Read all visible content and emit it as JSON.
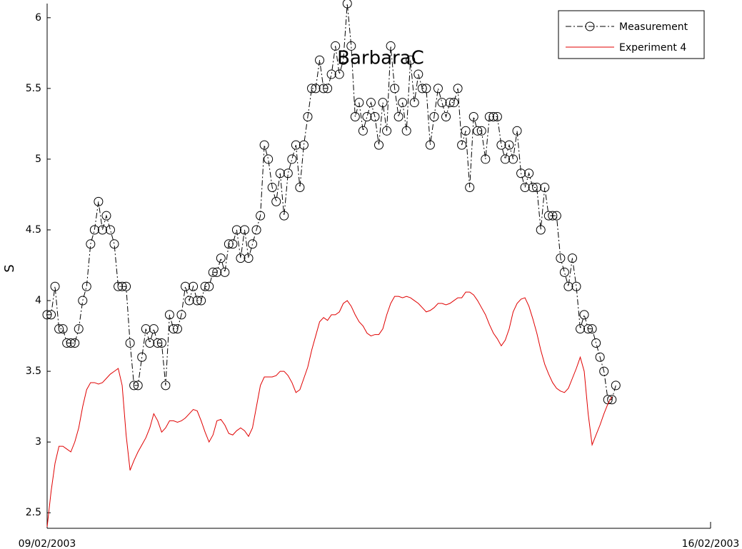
{
  "chart_data": {
    "type": "line",
    "title": "BarbaraC",
    "ylabel": "S",
    "xlim": [
      0,
      168
    ],
    "xticks": [
      {
        "value": 0,
        "label": "09/02/2003"
      },
      {
        "value": 168,
        "label": "16/02/2003"
      }
    ],
    "ylim": [
      2.39,
      6.1
    ],
    "yticks": [
      2.5,
      3,
      3.5,
      4,
      4.5,
      5,
      5.5,
      6
    ],
    "legend": "upper right",
    "x": [
      0,
      1,
      2,
      3,
      4,
      5,
      6,
      7,
      8,
      9,
      10,
      11,
      12,
      13,
      14,
      15,
      16,
      17,
      18,
      19,
      20,
      21,
      22,
      23,
      24,
      25,
      26,
      27,
      28,
      29,
      30,
      31,
      32,
      33,
      34,
      35,
      36,
      37,
      38,
      39,
      40,
      41,
      42,
      43,
      44,
      45,
      46,
      47,
      48,
      49,
      50,
      51,
      52,
      53,
      54,
      55,
      56,
      57,
      58,
      59,
      60,
      61,
      62,
      63,
      64,
      65,
      66,
      67,
      68,
      69,
      70,
      71,
      72,
      73,
      74,
      75,
      76,
      77,
      78,
      79,
      80,
      81,
      82,
      83,
      84,
      85,
      86,
      87,
      88,
      89,
      90,
      91,
      92,
      93,
      94,
      95,
      96,
      97,
      98,
      99,
      100,
      101,
      102,
      103,
      104,
      105,
      106,
      107,
      108,
      109,
      110,
      111,
      112,
      113,
      114,
      115,
      116,
      117,
      118,
      119,
      120,
      121,
      122,
      123,
      124,
      125,
      126,
      127,
      128,
      129,
      130,
      131,
      132,
      133,
      134,
      135,
      136,
      137,
      138,
      139,
      140,
      141,
      142,
      143,
      144
    ],
    "series": [
      {
        "name": "Measurement",
        "color": "#000000",
        "marker": "circle",
        "linestyle": "dashdot",
        "values": [
          3.9,
          3.9,
          4.1,
          3.8,
          3.8,
          3.7,
          3.7,
          3.7,
          3.8,
          4.0,
          4.1,
          4.4,
          4.5,
          4.7,
          4.5,
          4.6,
          4.5,
          4.4,
          4.1,
          4.1,
          4.1,
          3.7,
          3.4,
          3.4,
          3.6,
          3.8,
          3.7,
          3.8,
          3.7,
          3.7,
          3.4,
          3.9,
          3.8,
          3.8,
          3.9,
          4.1,
          4.0,
          4.1,
          4.0,
          4.0,
          4.1,
          4.1,
          4.2,
          4.2,
          4.3,
          4.2,
          4.4,
          4.4,
          4.5,
          4.3,
          4.5,
          4.3,
          4.4,
          4.5,
          4.6,
          5.1,
          5.0,
          4.8,
          4.7,
          4.9,
          4.6,
          4.9,
          5.0,
          5.1,
          4.8,
          5.1,
          5.3,
          5.5,
          5.5,
          5.7,
          5.5,
          5.5,
          5.6,
          5.8,
          5.6,
          5.7,
          6.1,
          5.8,
          5.3,
          5.4,
          5.2,
          5.3,
          5.4,
          5.3,
          5.1,
          5.4,
          5.2,
          5.8,
          5.5,
          5.3,
          5.4,
          5.2,
          5.7,
          5.4,
          5.6,
          5.5,
          5.5,
          5.1,
          5.3,
          5.5,
          5.4,
          5.3,
          5.4,
          5.4,
          5.5,
          5.1,
          5.2,
          4.8,
          5.3,
          5.2,
          5.2,
          5.0,
          5.3,
          5.3,
          5.3,
          5.1,
          5.0,
          5.1,
          5.0,
          5.2,
          4.9,
          4.8,
          4.9,
          4.8,
          4.8,
          4.5,
          4.8,
          4.6,
          4.6,
          4.6,
          4.3,
          4.2,
          4.1,
          4.3,
          4.1,
          3.8,
          3.9,
          3.8,
          3.8,
          3.7,
          3.6,
          3.5,
          3.3,
          3.3,
          3.4
        ]
      },
      {
        "name": "Experiment 4",
        "color": "#e00000",
        "linestyle": "solid",
        "values": [
          2.4,
          2.65,
          2.85,
          2.97,
          2.97,
          2.95,
          2.93,
          3.0,
          3.1,
          3.25,
          3.37,
          3.42,
          3.42,
          3.41,
          3.42,
          3.45,
          3.48,
          3.5,
          3.52,
          3.4,
          3.05,
          2.8,
          2.87,
          2.93,
          2.98,
          3.03,
          3.1,
          3.2,
          3.15,
          3.07,
          3.1,
          3.15,
          3.15,
          3.14,
          3.15,
          3.17,
          3.2,
          3.23,
          3.22,
          3.15,
          3.07,
          3.0,
          3.05,
          3.15,
          3.16,
          3.12,
          3.06,
          3.05,
          3.08,
          3.1,
          3.08,
          3.04,
          3.1,
          3.25,
          3.4,
          3.46,
          3.46,
          3.46,
          3.47,
          3.5,
          3.5,
          3.47,
          3.42,
          3.35,
          3.37,
          3.45,
          3.53,
          3.65,
          3.75,
          3.85,
          3.88,
          3.86,
          3.9,
          3.9,
          3.92,
          3.98,
          4.0,
          3.96,
          3.9,
          3.85,
          3.82,
          3.77,
          3.75,
          3.76,
          3.76,
          3.8,
          3.9,
          3.98,
          4.03,
          4.03,
          4.02,
          4.03,
          4.02,
          4.0,
          3.98,
          3.95,
          3.92,
          3.93,
          3.95,
          3.98,
          3.98,
          3.97,
          3.98,
          4.0,
          4.02,
          4.02,
          4.06,
          4.06,
          4.04,
          4.0,
          3.95,
          3.9,
          3.83,
          3.77,
          3.73,
          3.68,
          3.72,
          3.8,
          3.92,
          3.98,
          4.01,
          4.02,
          3.96,
          3.87,
          3.77,
          3.65,
          3.55,
          3.48,
          3.42,
          3.38,
          3.36,
          3.35,
          3.38,
          3.45,
          3.52,
          3.6,
          3.5,
          3.2,
          2.98,
          3.05,
          3.12,
          3.2,
          3.27,
          3.32,
          null
        ]
      }
    ]
  }
}
